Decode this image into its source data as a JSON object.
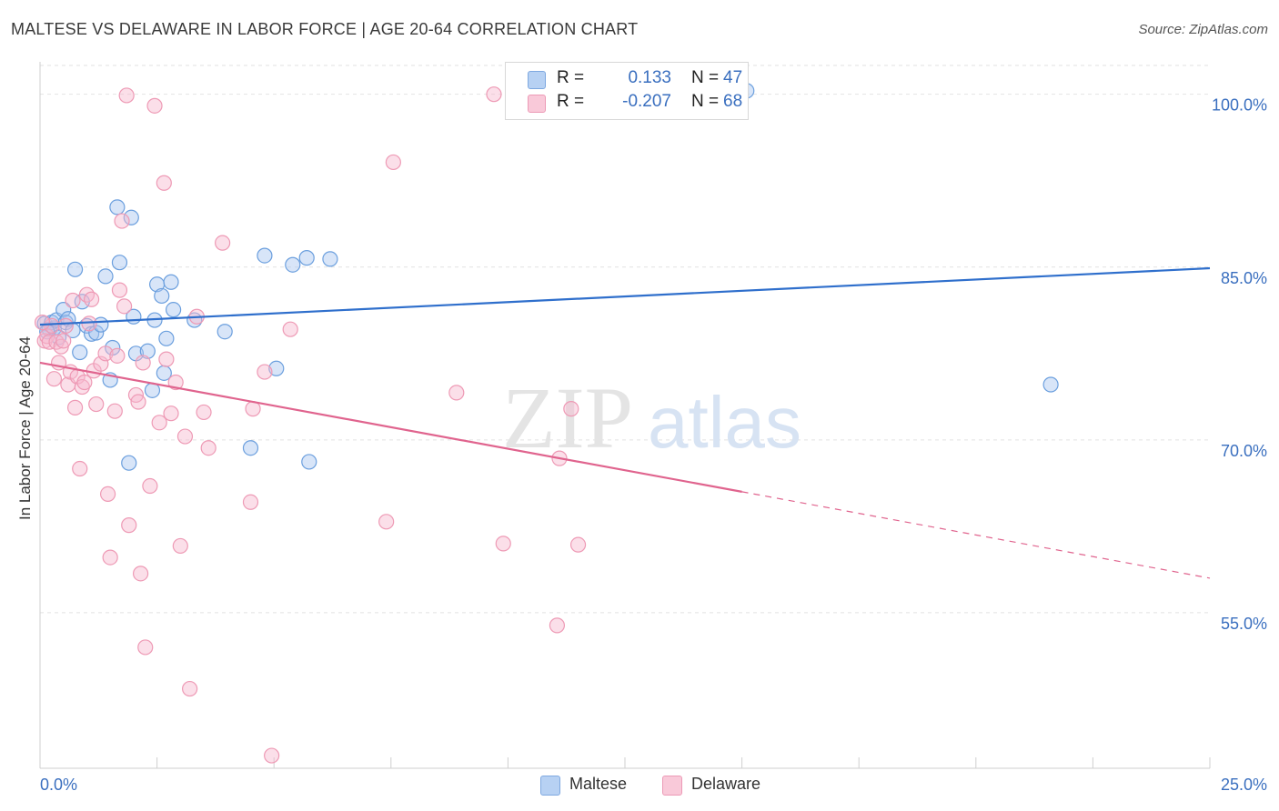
{
  "title": "MALTESE VS DELAWARE IN LABOR FORCE | AGE 20-64 CORRELATION CHART",
  "source": "Source: ZipAtlas.com",
  "watermark": {
    "zip": "ZIP",
    "atlas": "atlas"
  },
  "legend": {
    "rows": [
      {
        "r_label": "R =",
        "r_value": "0.133",
        "n_label": "N =",
        "n_value": "47",
        "color": "#a8c6ef"
      },
      {
        "r_label": "R =",
        "r_value": "-0.207",
        "n_label": "N =",
        "n_value": "68",
        "color": "#f6b8ce"
      }
    ]
  },
  "bottom_legend": [
    {
      "label": "Maltese",
      "color": "#a8c6ef"
    },
    {
      "label": "Delaware",
      "color": "#f6b8ce"
    }
  ],
  "chart_data": {
    "type": "scatter",
    "title": "MALTESE VS DELAWARE IN LABOR FORCE | AGE 20-64 CORRELATION CHART",
    "xlabel": "",
    "ylabel": "In Labor Force | Age 20-64",
    "xlim": [
      0,
      25
    ],
    "ylim": [
      41.5,
      102.5
    ],
    "x_tick_labels": [
      "0.0%",
      "25.0%"
    ],
    "y_ticks": [
      55,
      70,
      85,
      100
    ],
    "y_tick_labels": [
      "55.0%",
      "70.0%",
      "85.0%",
      "100.0%"
    ],
    "grid": true,
    "series": [
      {
        "name": "Maltese",
        "color": "#6b9fde",
        "fill": "#a8c6ef",
        "line_color": "#2f6fcc",
        "trend": {
          "x": [
            0,
            25
          ],
          "y": [
            80.0,
            84.9
          ]
        },
        "points": [
          [
            0.1,
            80.1
          ],
          [
            0.2,
            79.6
          ],
          [
            0.25,
            80.2
          ],
          [
            0.3,
            79.7
          ],
          [
            0.35,
            80.4
          ],
          [
            0.4,
            78.9
          ],
          [
            0.5,
            81.3
          ],
          [
            0.55,
            80.2
          ],
          [
            0.6,
            80.5
          ],
          [
            0.7,
            79.5
          ],
          [
            0.75,
            84.8
          ],
          [
            0.85,
            77.6
          ],
          [
            0.9,
            82.0
          ],
          [
            1.0,
            79.9
          ],
          [
            1.1,
            79.2
          ],
          [
            1.2,
            79.3
          ],
          [
            1.3,
            80.0
          ],
          [
            1.4,
            84.2
          ],
          [
            1.5,
            75.2
          ],
          [
            1.55,
            78.0
          ],
          [
            1.65,
            90.2
          ],
          [
            1.7,
            85.4
          ],
          [
            1.9,
            68.0
          ],
          [
            1.95,
            89.3
          ],
          [
            2.0,
            80.7
          ],
          [
            2.05,
            77.5
          ],
          [
            2.3,
            77.7
          ],
          [
            2.4,
            74.3
          ],
          [
            2.45,
            80.4
          ],
          [
            2.5,
            83.5
          ],
          [
            2.6,
            82.5
          ],
          [
            2.65,
            75.8
          ],
          [
            2.7,
            78.8
          ],
          [
            2.8,
            83.7
          ],
          [
            2.85,
            81.3
          ],
          [
            3.3,
            80.4
          ],
          [
            3.95,
            79.4
          ],
          [
            4.5,
            69.3
          ],
          [
            4.8,
            86.0
          ],
          [
            5.05,
            76.2
          ],
          [
            5.4,
            85.2
          ],
          [
            5.7,
            85.8
          ],
          [
            5.75,
            68.1
          ],
          [
            6.2,
            85.7
          ],
          [
            15.1,
            100.3
          ],
          [
            21.6,
            74.8
          ],
          [
            0.15,
            79.4
          ]
        ]
      },
      {
        "name": "Delaware",
        "color": "#ee9ab5",
        "fill": "#f6b8ce",
        "line_color": "#e0648e",
        "trend": {
          "x": [
            0,
            15
          ],
          "y": [
            76.7,
            65.5
          ]
        },
        "trend_dashed": {
          "x": [
            15,
            25
          ],
          "y": [
            65.5,
            58.0
          ]
        },
        "points": [
          [
            0.1,
            78.6
          ],
          [
            0.15,
            79.0
          ],
          [
            0.2,
            78.5
          ],
          [
            0.25,
            79.9
          ],
          [
            0.3,
            75.3
          ],
          [
            0.35,
            78.5
          ],
          [
            0.4,
            76.7
          ],
          [
            0.45,
            78.1
          ],
          [
            0.5,
            78.6
          ],
          [
            0.6,
            74.8
          ],
          [
            0.65,
            75.9
          ],
          [
            0.7,
            82.1
          ],
          [
            0.75,
            72.8
          ],
          [
            0.8,
            75.5
          ],
          [
            0.85,
            67.5
          ],
          [
            0.9,
            74.6
          ],
          [
            0.95,
            75.0
          ],
          [
            1.0,
            82.6
          ],
          [
            1.05,
            80.1
          ],
          [
            1.1,
            82.2
          ],
          [
            1.15,
            76.0
          ],
          [
            1.2,
            73.1
          ],
          [
            1.3,
            76.6
          ],
          [
            1.4,
            77.5
          ],
          [
            1.45,
            65.3
          ],
          [
            1.5,
            59.8
          ],
          [
            1.6,
            72.5
          ],
          [
            1.65,
            77.3
          ],
          [
            1.7,
            83.0
          ],
          [
            1.75,
            89.0
          ],
          [
            1.8,
            81.6
          ],
          [
            1.85,
            99.9
          ],
          [
            1.9,
            62.6
          ],
          [
            2.05,
            73.9
          ],
          [
            2.1,
            73.3
          ],
          [
            2.15,
            58.4
          ],
          [
            2.2,
            76.7
          ],
          [
            2.25,
            52.0
          ],
          [
            2.35,
            66.0
          ],
          [
            2.45,
            99.0
          ],
          [
            2.55,
            71.5
          ],
          [
            2.65,
            92.3
          ],
          [
            2.7,
            77.0
          ],
          [
            2.8,
            72.3
          ],
          [
            2.9,
            75.0
          ],
          [
            3.0,
            60.8
          ],
          [
            3.1,
            70.3
          ],
          [
            3.2,
            48.4
          ],
          [
            3.35,
            80.7
          ],
          [
            3.5,
            72.4
          ],
          [
            3.6,
            69.3
          ],
          [
            3.9,
            87.1
          ],
          [
            4.5,
            64.6
          ],
          [
            4.55,
            72.7
          ],
          [
            4.8,
            75.9
          ],
          [
            4.95,
            42.6
          ],
          [
            5.35,
            79.6
          ],
          [
            7.4,
            62.9
          ],
          [
            7.55,
            94.1
          ],
          [
            8.9,
            74.1
          ],
          [
            9.7,
            100.0
          ],
          [
            9.9,
            61.0
          ],
          [
            11.05,
            53.9
          ],
          [
            11.1,
            68.4
          ],
          [
            11.35,
            72.7
          ],
          [
            11.5,
            60.9
          ],
          [
            0.05,
            80.2
          ],
          [
            0.55,
            79.9
          ]
        ]
      }
    ]
  }
}
